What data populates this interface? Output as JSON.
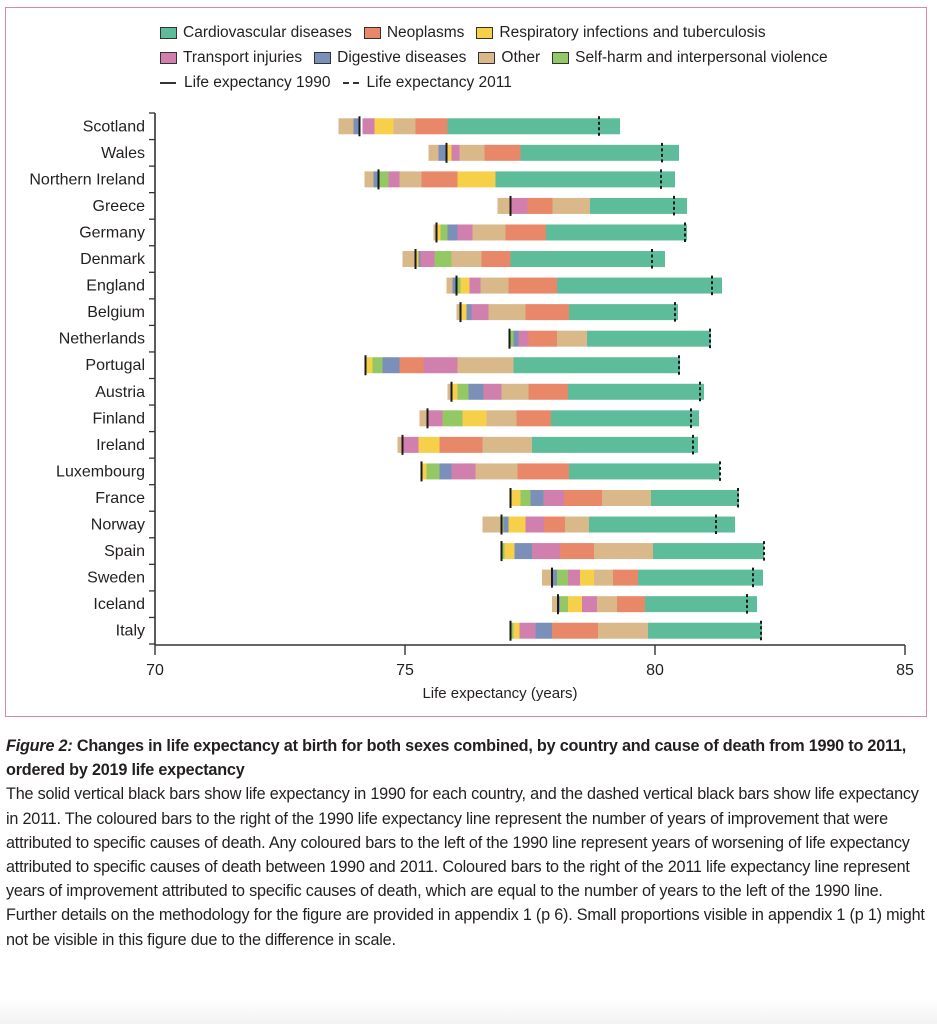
{
  "legend": {
    "causes": [
      {
        "key": "cardio",
        "label": "Cardiovascular diseases",
        "color": "#5dbd9b"
      },
      {
        "key": "neo",
        "label": "Neoplasms",
        "color": "#e98868"
      },
      {
        "key": "resp",
        "label": "Respiratory infections and tuberculosis",
        "color": "#f7d04a"
      },
      {
        "key": "transport",
        "label": "Transport injuries",
        "color": "#d17fad"
      },
      {
        "key": "digestive",
        "label": "Digestive diseases",
        "color": "#7b90b8"
      },
      {
        "key": "other",
        "label": "Other",
        "color": "#d9b98a"
      },
      {
        "key": "selfharm",
        "label": "Self-harm and interpersonal violence",
        "color": "#93c864"
      }
    ],
    "le1990_label": "Life expectancy 1990",
    "le2011_label": "Life expectancy 2011"
  },
  "chart_data": {
    "type": "bar",
    "subtype": "horizontal-stacked-range",
    "title": "",
    "xlabel": "Life expectancy (years)",
    "ylabel": "",
    "xlim": [
      70,
      85
    ],
    "xticks": [
      70,
      75,
      80,
      85
    ],
    "grid": false,
    "legend_position": "top",
    "countries": [
      {
        "name": "Scotland",
        "le1990": 74.09,
        "le2011": 78.88,
        "segments": [
          [
            "other",
            73.67,
            73.97
          ],
          [
            "digestive",
            73.97,
            74.09
          ],
          [
            "transport",
            74.15,
            74.39
          ],
          [
            "resp",
            74.39,
            74.77
          ],
          [
            "other",
            74.77,
            75.21
          ],
          [
            "neo",
            75.21,
            75.85
          ],
          [
            "cardio",
            75.85,
            79.3
          ]
        ]
      },
      {
        "name": "Wales",
        "le1990": 75.83,
        "le2011": 80.14,
        "segments": [
          [
            "other",
            75.47,
            75.67
          ],
          [
            "digestive",
            75.67,
            75.83
          ],
          [
            "resp",
            75.83,
            75.93
          ],
          [
            "transport",
            75.93,
            76.09
          ],
          [
            "other",
            76.09,
            76.59
          ],
          [
            "neo",
            76.59,
            77.31
          ],
          [
            "cardio",
            77.31,
            80.48
          ]
        ]
      },
      {
        "name": "Northern Ireland",
        "le1990": 74.47,
        "le2011": 80.12,
        "segments": [
          [
            "other",
            74.19,
            74.37
          ],
          [
            "digestive",
            74.37,
            74.47
          ],
          [
            "selfharm",
            74.47,
            74.67
          ],
          [
            "transport",
            74.67,
            74.89
          ],
          [
            "other",
            74.89,
            75.33
          ],
          [
            "neo",
            75.33,
            76.05
          ],
          [
            "resp",
            76.05,
            76.81
          ],
          [
            "cardio",
            76.81,
            80.4
          ]
        ]
      },
      {
        "name": "Greece",
        "le1990": 77.11,
        "le2011": 80.38,
        "segments": [
          [
            "other",
            76.85,
            77.11
          ],
          [
            "transport",
            77.13,
            77.45
          ],
          [
            "neo",
            77.45,
            77.95
          ],
          [
            "other",
            77.95,
            78.7
          ],
          [
            "cardio",
            78.7,
            80.64
          ]
        ]
      },
      {
        "name": "Germany",
        "le1990": 75.63,
        "le2011": 80.6,
        "segments": [
          [
            "other",
            75.57,
            75.63
          ],
          [
            "resp",
            75.63,
            75.71
          ],
          [
            "selfharm",
            75.71,
            75.85
          ],
          [
            "digestive",
            75.85,
            76.05
          ],
          [
            "transport",
            76.05,
            76.35
          ],
          [
            "other",
            76.35,
            77.01
          ],
          [
            "neo",
            77.01,
            77.82
          ],
          [
            "cardio",
            77.82,
            80.64
          ]
        ]
      },
      {
        "name": "Denmark",
        "le1990": 75.21,
        "le2011": 79.94,
        "segments": [
          [
            "other",
            74.95,
            75.21
          ],
          [
            "resp",
            75.21,
            75.27
          ],
          [
            "digestive",
            75.27,
            75.31
          ],
          [
            "transport",
            75.31,
            75.59
          ],
          [
            "selfharm",
            75.59,
            75.93
          ],
          [
            "other",
            75.93,
            76.53
          ],
          [
            "neo",
            76.53,
            77.11
          ],
          [
            "cardio",
            77.11,
            80.2
          ]
        ]
      },
      {
        "name": "England",
        "le1990": 76.03,
        "le2011": 81.14,
        "segments": [
          [
            "other",
            75.83,
            75.95
          ],
          [
            "digestive",
            75.95,
            76.01
          ],
          [
            "selfharm",
            76.03,
            76.11
          ],
          [
            "resp",
            76.11,
            76.29
          ],
          [
            "transport",
            76.29,
            76.51
          ],
          [
            "other",
            76.51,
            77.07
          ],
          [
            "neo",
            77.07,
            78.04
          ],
          [
            "cardio",
            78.04,
            81.34
          ]
        ]
      },
      {
        "name": "Belgium",
        "le1990": 76.11,
        "le2011": 80.4,
        "segments": [
          [
            "other",
            76.03,
            76.11
          ],
          [
            "resp",
            76.11,
            76.23
          ],
          [
            "digestive",
            76.23,
            76.33
          ],
          [
            "transport",
            76.33,
            76.67
          ],
          [
            "other",
            76.67,
            77.41
          ],
          [
            "neo",
            77.41,
            78.28
          ],
          [
            "cardio",
            78.28,
            80.46
          ]
        ]
      },
      {
        "name": "Netherlands",
        "le1990": 77.09,
        "le2011": 81.1,
        "segments": [
          [
            "selfharm",
            77.11,
            77.17
          ],
          [
            "digestive",
            77.17,
            77.27
          ],
          [
            "transport",
            77.27,
            77.47
          ],
          [
            "neo",
            77.47,
            78.04
          ],
          [
            "other",
            78.04,
            78.64
          ],
          [
            "cardio",
            78.64,
            81.12
          ]
        ]
      },
      {
        "name": "Portugal",
        "le1990": 74.21,
        "le2011": 80.48,
        "segments": [
          [
            "resp",
            74.21,
            74.35
          ],
          [
            "selfharm",
            74.35,
            74.55
          ],
          [
            "digestive",
            74.55,
            74.89
          ],
          [
            "neo",
            74.89,
            75.37
          ],
          [
            "transport",
            75.37,
            76.05
          ],
          [
            "other",
            76.05,
            77.17
          ],
          [
            "cardio",
            77.17,
            80.5
          ]
        ]
      },
      {
        "name": "Austria",
        "le1990": 75.93,
        "le2011": 80.9,
        "segments": [
          [
            "other",
            75.85,
            75.93
          ],
          [
            "resp",
            75.93,
            76.05
          ],
          [
            "selfharm",
            76.05,
            76.27
          ],
          [
            "digestive",
            76.27,
            76.57
          ],
          [
            "transport",
            76.57,
            76.93
          ],
          [
            "other",
            76.93,
            77.47
          ],
          [
            "neo",
            77.47,
            78.26
          ],
          [
            "cardio",
            78.26,
            80.98
          ]
        ]
      },
      {
        "name": "Finland",
        "le1990": 75.45,
        "le2011": 80.72,
        "segments": [
          [
            "other",
            75.29,
            75.45
          ],
          [
            "transport",
            75.45,
            75.75
          ],
          [
            "selfharm",
            75.75,
            76.15
          ],
          [
            "resp",
            76.15,
            76.63
          ],
          [
            "other",
            76.63,
            77.23
          ],
          [
            "neo",
            77.23,
            77.92
          ],
          [
            "cardio",
            77.92,
            80.88
          ]
        ]
      },
      {
        "name": "Ireland",
        "le1990": 74.95,
        "le2011": 80.76,
        "segments": [
          [
            "other",
            74.85,
            74.93
          ],
          [
            "transport",
            74.95,
            75.27
          ],
          [
            "resp",
            75.27,
            75.69
          ],
          [
            "neo",
            75.69,
            76.55
          ],
          [
            "other",
            76.55,
            77.54
          ],
          [
            "cardio",
            77.54,
            80.86
          ]
        ]
      },
      {
        "name": "Luxembourg",
        "le1990": 75.33,
        "le2011": 81.3,
        "segments": [
          [
            "resp",
            75.33,
            75.43
          ],
          [
            "selfharm",
            75.43,
            75.69
          ],
          [
            "digestive",
            75.69,
            75.93
          ],
          [
            "transport",
            75.93,
            76.41
          ],
          [
            "other",
            76.41,
            77.25
          ],
          [
            "neo",
            77.25,
            78.28
          ],
          [
            "cardio",
            78.28,
            81.3
          ]
        ]
      },
      {
        "name": "France",
        "le1990": 77.11,
        "le2011": 81.66,
        "segments": [
          [
            "resp",
            77.11,
            77.31
          ],
          [
            "selfharm",
            77.31,
            77.51
          ],
          [
            "digestive",
            77.51,
            77.77
          ],
          [
            "transport",
            77.77,
            78.18
          ],
          [
            "neo",
            78.18,
            78.94
          ],
          [
            "other",
            78.94,
            79.92
          ],
          [
            "cardio",
            79.92,
            81.68
          ]
        ]
      },
      {
        "name": "Norway",
        "le1990": 76.93,
        "le2011": 81.22,
        "segments": [
          [
            "other",
            76.55,
            76.91
          ],
          [
            "selfharm",
            76.93,
            76.97
          ],
          [
            "digestive",
            76.97,
            77.07
          ],
          [
            "resp",
            77.07,
            77.41
          ],
          [
            "transport",
            77.41,
            77.78
          ],
          [
            "neo",
            77.78,
            78.2
          ],
          [
            "other",
            78.2,
            78.68
          ],
          [
            "cardio",
            78.68,
            81.6
          ]
        ]
      },
      {
        "name": "Spain",
        "le1990": 76.93,
        "le2011": 82.18,
        "segments": [
          [
            "selfharm",
            76.93,
            76.99
          ],
          [
            "resp",
            76.99,
            77.19
          ],
          [
            "digestive",
            77.19,
            77.54
          ],
          [
            "transport",
            77.54,
            78.1
          ],
          [
            "neo",
            78.1,
            78.78
          ],
          [
            "other",
            78.78,
            79.96
          ],
          [
            "cardio",
            79.96,
            82.18
          ]
        ]
      },
      {
        "name": "Sweden",
        "le1990": 77.94,
        "le2011": 81.96,
        "segments": [
          [
            "other",
            77.74,
            77.94
          ],
          [
            "digestive",
            77.94,
            78.04
          ],
          [
            "selfharm",
            78.04,
            78.26
          ],
          [
            "transport",
            78.26,
            78.5
          ],
          [
            "resp",
            78.5,
            78.78
          ],
          [
            "other",
            78.78,
            79.16
          ],
          [
            "neo",
            79.16,
            79.66
          ],
          [
            "cardio",
            79.66,
            82.16
          ]
        ]
      },
      {
        "name": "Iceland",
        "le1990": 78.06,
        "le2011": 81.84,
        "segments": [
          [
            "other",
            77.94,
            78.04
          ],
          [
            "digestive",
            78.06,
            78.1
          ],
          [
            "selfharm",
            78.1,
            78.26
          ],
          [
            "resp",
            78.26,
            78.54
          ],
          [
            "transport",
            78.54,
            78.84
          ],
          [
            "other",
            78.84,
            79.24
          ],
          [
            "neo",
            79.24,
            79.8
          ],
          [
            "cardio",
            79.8,
            82.04
          ]
        ]
      },
      {
        "name": "Italy",
        "le1990": 77.11,
        "le2011": 82.12,
        "segments": [
          [
            "selfharm",
            77.11,
            77.17
          ],
          [
            "resp",
            77.17,
            77.29
          ],
          [
            "transport",
            77.29,
            77.61
          ],
          [
            "digestive",
            77.61,
            77.94
          ],
          [
            "neo",
            77.94,
            78.86
          ],
          [
            "other",
            78.86,
            79.86
          ],
          [
            "cardio",
            79.86,
            82.14
          ]
        ]
      }
    ]
  },
  "caption": {
    "figure_label": "Figure 2:",
    "title": "Changes in life expectancy at birth for both sexes combined, by country and cause of death from 1990 to 2011, ordered by 2019 life expectancy",
    "body": "The solid vertical black bars show life expectancy in 1990 for each country, and the dashed vertical black bars show life expectancy in 2011. The coloured bars to the right of the 1990 life expectancy line represent the number of years of improvement that were attributed to specific causes of death. Any coloured bars to the left of the 1990 line represent years of worsening of life expectancy attributed to specific causes of death between 1990 and 2011. Coloured bars to the right of the 2011 life expectancy line represent years of improvement attributed to specific causes of death, which are equal to the number of years to the left of the 1990 line. Further details on the methodology for the figure are provided in appendix 1 (p 6). Small proportions visible in appendix 1 (p 1) might not be visible in this figure due to the difference in scale."
  }
}
